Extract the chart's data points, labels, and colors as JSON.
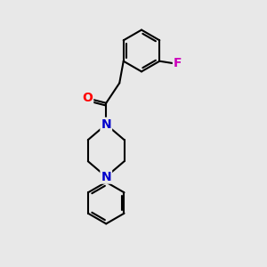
{
  "background_color": "#e8e8e8",
  "bond_color": "#000000",
  "bond_width": 1.5,
  "atom_colors": {
    "O": "#ff0000",
    "N": "#0000cc",
    "F": "#cc00bb",
    "C": "#000000"
  },
  "font_size_atom": 10,
  "fig_size": [
    3.0,
    3.0
  ],
  "dpi": 100
}
